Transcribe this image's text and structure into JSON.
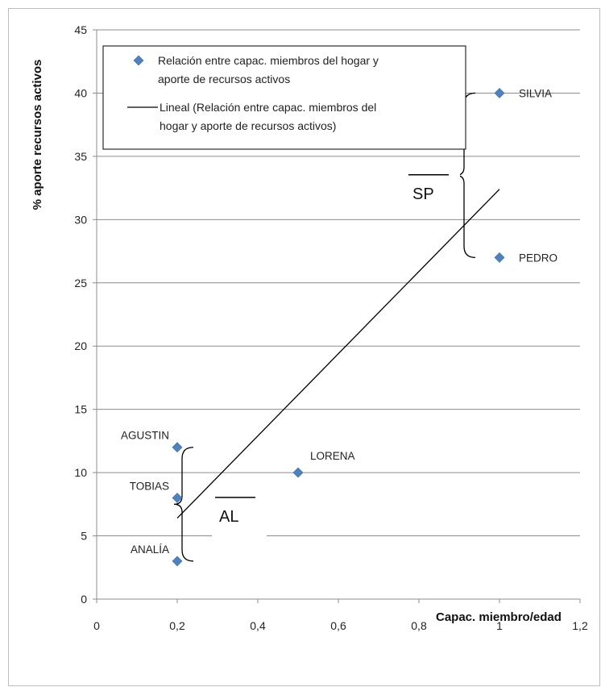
{
  "chart_data": {
    "type": "scatter",
    "title": "",
    "xlabel": "Capac. miembro/edad",
    "ylabel": "% aporte recursos activos",
    "xlim": [
      0,
      1.2
    ],
    "ylim": [
      0,
      45
    ],
    "x_ticks": [
      "0",
      "0,2",
      "0,4",
      "0,6",
      "0,8",
      "1",
      "1,2"
    ],
    "y_ticks": [
      "0",
      "5",
      "10",
      "15",
      "20",
      "25",
      "30",
      "35",
      "40",
      "45"
    ],
    "grid": "horizontal",
    "legend_position": "top-left",
    "series": [
      {
        "name": "Relación entre capac. miembros del hogar y aporte de recursos activos",
        "color": "#4f81bd",
        "marker": "diamond",
        "points": [
          {
            "label": "AGUSTIN",
            "x": 0.2,
            "y": 12
          },
          {
            "label": "TOBIAS",
            "x": 0.2,
            "y": 8
          },
          {
            "label": "ANALÍA",
            "x": 0.2,
            "y": 3
          },
          {
            "label": "LORENA",
            "x": 0.5,
            "y": 10
          },
          {
            "label": "SILVIA",
            "x": 1.0,
            "y": 40
          },
          {
            "label": "PEDRO",
            "x": 1.0,
            "y": 27
          }
        ]
      }
    ],
    "trendline": {
      "name": "Lineal (Relación entre capac. miembros del hogar y aporte de recursos activos)",
      "type": "linear",
      "color": "#000000",
      "x_start": 0.2,
      "y_start": 6.4,
      "x_end": 1.0,
      "y_end": 32.4
    },
    "legend_lines": {
      "series": [
        "Relación entre capac. miembros del hogar y",
        "aporte de recursos activos"
      ],
      "trendline": [
        "Lineal (Relación entre capac. miembros del",
        "hogar y aporte de recursos activos)"
      ]
    },
    "annotations": [
      {
        "text": "SP",
        "group": [
          "SILVIA",
          "PEDRO"
        ],
        "brace_x": 0.94,
        "y_from": 27,
        "y_to": 40,
        "label_x": 0.79,
        "label_y": 31.5
      },
      {
        "text": "AL",
        "group": [
          "AGUSTIN",
          "TOBIAS",
          "ANALÍA"
        ],
        "brace_x": 0.24,
        "y_from": 3,
        "y_to": 12,
        "label_x": 0.31,
        "label_y": 6
      }
    ]
  }
}
